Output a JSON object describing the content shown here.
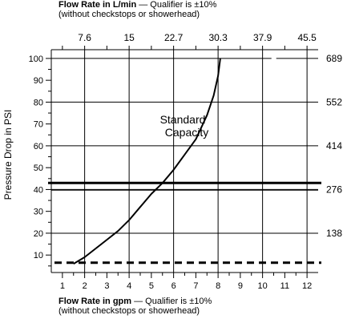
{
  "chart_data": {
    "type": "line",
    "top_axis": {
      "title": "Flow Rate in L/min",
      "qualifier": "— Qualifier is ±10%",
      "note": "(without checkstops or showerhead)",
      "ticks": [
        "7.6",
        "15",
        "22.7",
        "30.3",
        "37.9",
        "45.5"
      ],
      "tick_positions_gpm": [
        2,
        4,
        6,
        8,
        10,
        12
      ]
    },
    "bottom_axis": {
      "title": "Flow Rate in gpm",
      "qualifier": "— Qualifier is ±10%",
      "note": "(without checkstops or showerhead)",
      "ticks": [
        "1",
        "2",
        "3",
        "4",
        "5",
        "6",
        "7",
        "8",
        "9",
        "10",
        "11",
        "12"
      ],
      "xlim": [
        0.5,
        12.5
      ]
    },
    "left_axis": {
      "title": "Pressure Drop in PSI",
      "ticks": [
        "10",
        "20",
        "30",
        "40",
        "50",
        "60",
        "70",
        "80",
        "90",
        "100"
      ],
      "ylim": [
        2,
        104
      ]
    },
    "right_axis": {
      "ticks": [
        "138",
        "276",
        "414",
        "552",
        "689"
      ],
      "tick_positions_psi": [
        20,
        40,
        60,
        80,
        100
      ]
    },
    "series": [
      {
        "name": "Standard Capacity",
        "x": [
          1.5,
          2.0,
          2.5,
          3.0,
          3.5,
          4.0,
          4.5,
          5.0,
          5.5,
          6.0,
          6.5,
          7.0,
          7.5,
          7.8,
          8.0,
          8.1
        ],
        "y": [
          6,
          9,
          13,
          17,
          21,
          26,
          32,
          38,
          43,
          49,
          56,
          63,
          74,
          83,
          92,
          100
        ]
      }
    ],
    "reference_lines": [
      {
        "style": "solid-thick",
        "y": 43
      },
      {
        "style": "dashed-thick",
        "y": 6.5
      }
    ],
    "grid": true
  }
}
